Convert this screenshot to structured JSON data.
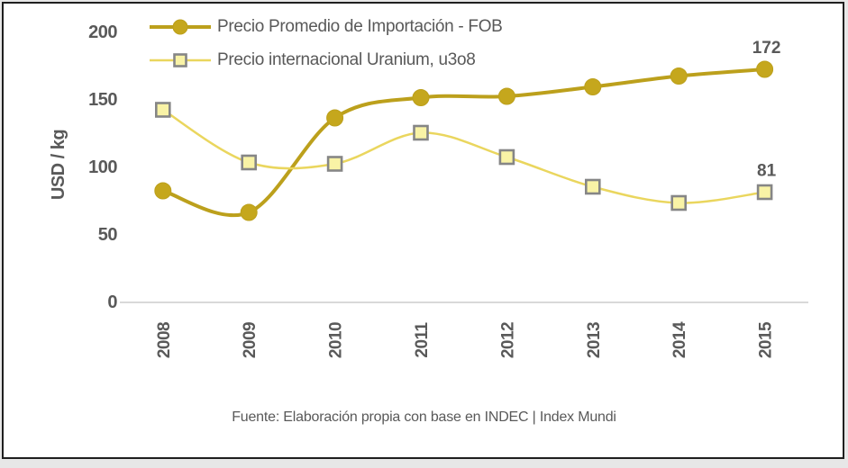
{
  "chart_data": {
    "type": "line",
    "ylabel": "USD / kg",
    "xlabel": "",
    "categories": [
      "2008",
      "2009",
      "2010",
      "2011",
      "2012",
      "2013",
      "2014",
      "2015"
    ],
    "y_ticks": [
      0,
      50,
      100,
      150,
      200
    ],
    "ylim": [
      0,
      200
    ],
    "grid": false,
    "legend_position": "top-left",
    "series": [
      {
        "name": "Precio Promedio de Importación - FOB",
        "marker": "circle",
        "color": "#BCA01C",
        "marker_fill": "#C5A71D",
        "values": [
          82,
          66,
          136,
          151,
          152,
          159,
          167,
          172
        ],
        "end_label": "172"
      },
      {
        "name": "Precio internacional Uranium, u3o8",
        "marker": "square",
        "color": "#EAD65E",
        "marker_fill": "#F9F3A6",
        "marker_stroke": "#868686",
        "values": [
          142,
          103,
          102,
          125,
          107,
          85,
          73,
          81
        ],
        "end_label": "81"
      }
    ],
    "source_note": "Fuente: Elaboración propia con base en INDEC | Index Mundi"
  },
  "colors": {
    "text": "#595959",
    "axis_line": "#D9D9D9",
    "frame_border": "#1f1f1f",
    "chart_background": "#ffffff",
    "page_margin": "#e7e7e7"
  }
}
